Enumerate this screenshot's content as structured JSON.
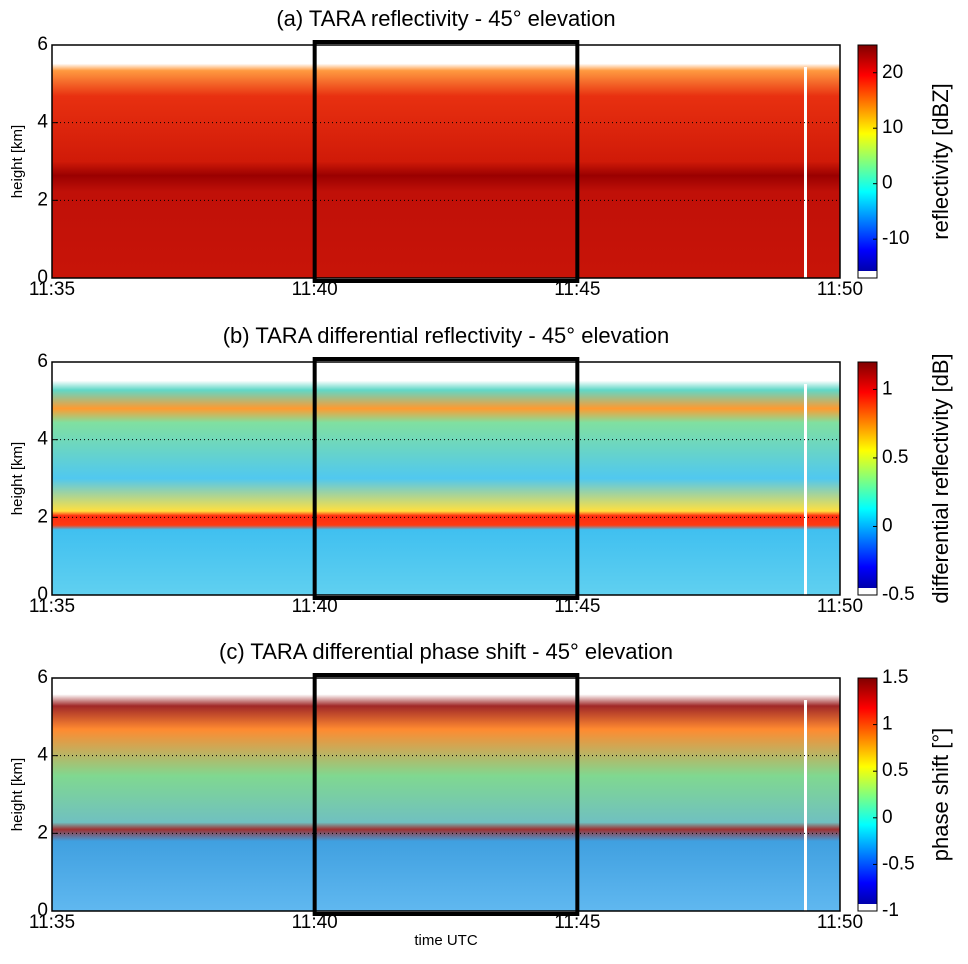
{
  "chart_data": [
    {
      "type": "heatmap",
      "title": "(a) TARA reflectivity - 45° elevation",
      "ylabel": "height [km]",
      "xlim": [
        "11:35",
        "11:50"
      ],
      "xticks": [
        "11:35",
        "11:40",
        "11:45",
        "11:50"
      ],
      "ylim": [
        0,
        6
      ],
      "yticks": [
        0,
        2,
        4,
        6
      ],
      "grid": true,
      "highlight_x": [
        "11:40",
        "11:45"
      ],
      "colormap": "jet",
      "colorbar_label": "reflectivity [dBZ]",
      "clim": [
        -17,
        25
      ],
      "cticks": [
        -10,
        0,
        10,
        20
      ]
    },
    {
      "type": "heatmap",
      "title": "(b) TARA differential reflectivity - 45° elevation",
      "ylabel": "height [km]",
      "xlim": [
        "11:35",
        "11:50"
      ],
      "xticks": [
        "11:35",
        "11:40",
        "11:45",
        "11:50"
      ],
      "ylim": [
        0,
        6
      ],
      "yticks": [
        0,
        2,
        4,
        6
      ],
      "grid": true,
      "highlight_x": [
        "11:40",
        "11:45"
      ],
      "colormap": "jet",
      "colorbar_label": "differential reflectivity [dB]",
      "clim": [
        -0.5,
        1.2
      ],
      "cticks": [
        -0.5,
        0,
        0.5,
        1
      ]
    },
    {
      "type": "heatmap",
      "title": "(c) TARA differential phase shift - 45° elevation",
      "ylabel": "height [km]",
      "xlabel": "time UTC",
      "xlim": [
        "11:35",
        "11:50"
      ],
      "xticks": [
        "11:35",
        "11:40",
        "11:45",
        "11:50"
      ],
      "ylim": [
        0,
        6
      ],
      "yticks": [
        0,
        2,
        4,
        6
      ],
      "grid": true,
      "highlight_x": [
        "11:40",
        "11:45"
      ],
      "colormap": "jet",
      "colorbar_label": "phase shift [°]",
      "clim": [
        -1,
        1.5
      ],
      "cticks": [
        -1,
        -0.5,
        0,
        0.5,
        1,
        1.5
      ]
    }
  ]
}
